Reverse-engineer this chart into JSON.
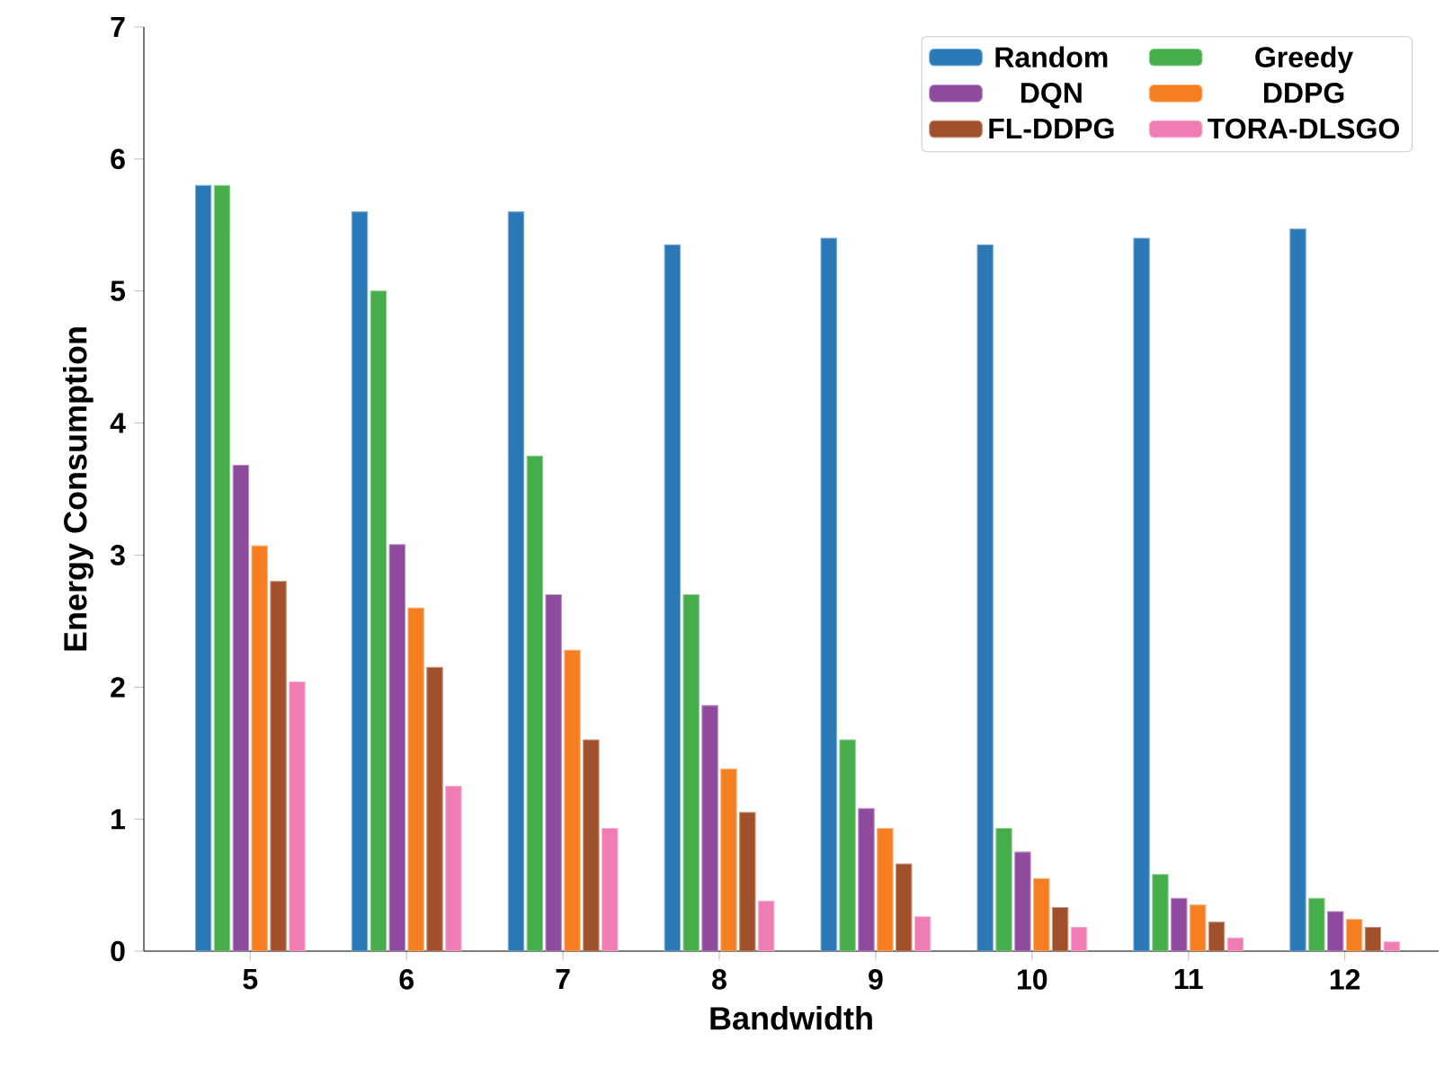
{
  "chart_data": {
    "type": "bar",
    "xlabel": "Bandwidth",
    "ylabel": "Energy Consumption",
    "categories": [
      "5",
      "6",
      "7",
      "8",
      "9",
      "10",
      "11",
      "12"
    ],
    "series": [
      {
        "name": "Random",
        "color": "#2b78b6",
        "values": [
          5.8,
          5.6,
          5.6,
          5.35,
          5.4,
          5.35,
          5.4,
          5.47
        ]
      },
      {
        "name": "Greedy",
        "color": "#45ad4a",
        "values": [
          5.8,
          5.0,
          3.75,
          2.7,
          1.6,
          0.93,
          0.58,
          0.4
        ]
      },
      {
        "name": "DQN",
        "color": "#8e4a9c",
        "values": [
          3.68,
          3.08,
          2.7,
          1.86,
          1.08,
          0.75,
          0.4,
          0.3
        ]
      },
      {
        "name": "DDPG",
        "color": "#f57f20",
        "values": [
          3.07,
          2.6,
          2.28,
          1.38,
          0.93,
          0.55,
          0.35,
          0.24
        ]
      },
      {
        "name": "FL-DDPG",
        "color": "#a0502a",
        "values": [
          2.8,
          2.15,
          1.6,
          1.05,
          0.66,
          0.33,
          0.22,
          0.18
        ]
      },
      {
        "name": "TORA-DLSGO",
        "color": "#f07cb4",
        "values": [
          2.04,
          1.25,
          0.93,
          0.38,
          0.26,
          0.18,
          0.1,
          0.07
        ]
      }
    ],
    "ylim": [
      0,
      7
    ],
    "yticks": [
      0,
      1,
      2,
      3,
      4,
      5,
      6,
      7
    ],
    "legend": "top right",
    "grid": false
  }
}
